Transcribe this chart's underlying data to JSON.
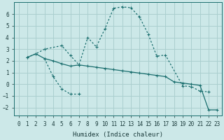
{
  "xlabel": "Humidex (Indice chaleur)",
  "bg_color": "#cce8e8",
  "grid_color": "#aacfcf",
  "line_color": "#1a6e6e",
  "xlim": [
    -0.5,
    23.5
  ],
  "ylim": [
    -2.7,
    7.0
  ],
  "xticks": [
    0,
    1,
    2,
    3,
    4,
    5,
    6,
    7,
    8,
    9,
    10,
    11,
    12,
    13,
    14,
    15,
    16,
    17,
    18,
    19,
    20,
    21,
    22,
    23
  ],
  "yticks": [
    -2,
    -1,
    0,
    1,
    2,
    3,
    4,
    5,
    6
  ],
  "line1_x": [
    1,
    2,
    3,
    4,
    5,
    6,
    7,
    8,
    9,
    10,
    11,
    12,
    13,
    14,
    15,
    16,
    17,
    18,
    19,
    20,
    21,
    22,
    23
  ],
  "line1_y": [
    2.3,
    2.6,
    2.2,
    2.0,
    1.75,
    1.55,
    1.65,
    1.55,
    1.45,
    1.35,
    1.25,
    1.15,
    1.05,
    0.95,
    0.85,
    0.75,
    0.65,
    0.2,
    0.1,
    0.0,
    -0.1,
    -2.2,
    -2.2
  ],
  "line2_x": [
    1,
    2,
    3,
    5,
    6,
    7,
    8,
    9,
    10,
    11,
    12,
    13,
    14,
    15,
    16,
    17,
    19,
    20,
    21,
    22
  ],
  "line2_y": [
    2.3,
    2.6,
    3.0,
    3.3,
    2.45,
    1.65,
    4.0,
    3.2,
    4.75,
    6.5,
    6.62,
    6.55,
    5.75,
    4.3,
    2.4,
    2.5,
    -0.15,
    -0.2,
    -0.6,
    -0.65
  ],
  "line3_x": [
    3,
    4,
    5,
    6,
    7
  ],
  "line3_y": [
    2.2,
    0.65,
    -0.4,
    -0.85,
    -0.85
  ]
}
